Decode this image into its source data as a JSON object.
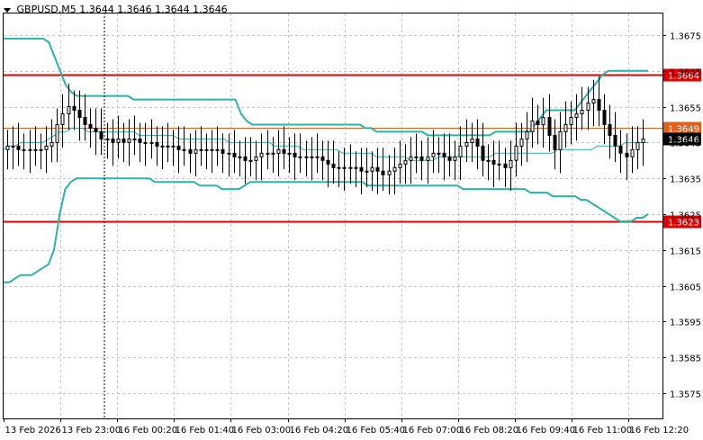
{
  "header": {
    "symbol": "GBPUSD,M5",
    "ohlc": "1.3644 1.3646 1.3644 1.3646",
    "menu_icon": "triangle-down-icon"
  },
  "colors": {
    "background": "#ffffff",
    "grid": "#c8c8c8",
    "candle": "#000000",
    "bands": "#2ab5a7",
    "level": "#e00000",
    "current_line": "#e06020",
    "price_tag": "#000000"
  },
  "chart_data": {
    "type": "candlestick",
    "symbol": "GBPUSD",
    "timeframe": "M5",
    "ylim": [
      1.3568,
      1.3681
    ],
    "y_ticks": [
      "1.3675",
      "1.3665",
      "1.3655",
      "1.3645",
      "1.3635",
      "1.3625",
      "1.3615",
      "1.3605",
      "1.3595",
      "1.3585",
      "1.3575"
    ],
    "x_ticks": [
      "13 Feb 2026",
      "13 Feb 23:00",
      "16 Feb 00:20",
      "16 Feb 01:40",
      "16 Feb 03:00",
      "16 Feb 04:20",
      "16 Feb 05:40",
      "16 Feb 07:00",
      "16 Feb 08:20",
      "16 Feb 09:40",
      "16 Feb 11:00",
      "16 Feb 12:20"
    ],
    "levels": [
      {
        "label": "1.3664",
        "value": 1.3664
      },
      {
        "label": "1.3623",
        "value": 1.3623
      }
    ],
    "marker_line": {
      "label": "1.3649",
      "value": 1.3649
    },
    "current_price": {
      "label": "1.3646",
      "value": 1.3646
    },
    "bands_upper": [
      1.3674,
      1.3674,
      1.3674,
      1.3674,
      1.3674,
      1.3674,
      1.3674,
      1.3674,
      1.3673,
      1.3669,
      1.3665,
      1.3661,
      1.3659,
      1.3658,
      1.3658,
      1.3658,
      1.3658,
      1.3658,
      1.3658,
      1.3658,
      1.3658,
      1.3658,
      1.3658,
      1.3657,
      1.3657,
      1.3657,
      1.3657,
      1.3657,
      1.3657,
      1.3657,
      1.3657,
      1.3657,
      1.3657,
      1.3657,
      1.3657,
      1.3657,
      1.3657,
      1.3657,
      1.3657,
      1.3657,
      1.3657,
      1.3657,
      1.3653,
      1.3651,
      1.365,
      1.365,
      1.365,
      1.365,
      1.365,
      1.365,
      1.365,
      1.365,
      1.365,
      1.365,
      1.365,
      1.365,
      1.365,
      1.365,
      1.365,
      1.365,
      1.365,
      1.365,
      1.365,
      1.365,
      1.3649,
      1.3649,
      1.3648,
      1.3648,
      1.3648,
      1.3648,
      1.3648,
      1.3648,
      1.3648,
      1.3648,
      1.3648,
      1.3647,
      1.3647,
      1.3647,
      1.3647,
      1.3647,
      1.3647,
      1.3647,
      1.3647,
      1.3647,
      1.3647,
      1.3647,
      1.3647,
      1.3648,
      1.3648,
      1.3648,
      1.3648,
      1.3648,
      1.3648,
      1.3648,
      1.365,
      1.3652,
      1.3654,
      1.3654,
      1.3654,
      1.3654,
      1.3654,
      1.3654,
      1.3656,
      1.3658,
      1.366,
      1.3662,
      1.3664,
      1.3665,
      1.3665,
      1.3665,
      1.3665,
      1.3665,
      1.3665,
      1.3665,
      1.3665
    ],
    "bands_middle": [
      1.3643,
      1.3644,
      1.3644,
      1.3645,
      1.3645,
      1.3645,
      1.3645,
      1.3645,
      1.3646,
      1.3647,
      1.3648,
      1.3648,
      1.3649,
      1.3649,
      1.3649,
      1.3648,
      1.3648,
      1.3648,
      1.3648,
      1.3648,
      1.3648,
      1.3648,
      1.3648,
      1.3648,
      1.3647,
      1.3647,
      1.3647,
      1.3647,
      1.3647,
      1.3647,
      1.3647,
      1.3646,
      1.3646,
      1.3646,
      1.3646,
      1.3646,
      1.3646,
      1.3646,
      1.3646,
      1.3646,
      1.3645,
      1.3645,
      1.3645,
      1.3645,
      1.3645,
      1.3645,
      1.3645,
      1.3645,
      1.3644,
      1.3644,
      1.3644,
      1.3644,
      1.3644,
      1.3643,
      1.3643,
      1.3643,
      1.3643,
      1.3643,
      1.3643,
      1.3643,
      1.3642,
      1.3642,
      1.3642,
      1.3642,
      1.3642,
      1.3642,
      1.3641,
      1.3641,
      1.3641,
      1.3641,
      1.3641,
      1.3641,
      1.364,
      1.364,
      1.364,
      1.364,
      1.364,
      1.3641,
      1.3641,
      1.3641,
      1.3641,
      1.3641,
      1.3641,
      1.3641,
      1.3641,
      1.3641,
      1.3641,
      1.3642,
      1.3642,
      1.3642,
      1.3642,
      1.3642,
      1.3642,
      1.3642,
      1.3642,
      1.3642,
      1.3642,
      1.3642,
      1.3643,
      1.3643,
      1.3643,
      1.3643,
      1.3643,
      1.3643,
      1.3643,
      1.3644,
      1.3644,
      1.3644,
      1.3644,
      1.3644,
      1.3645,
      1.3645,
      1.3645,
      1.3645,
      1.3645
    ],
    "bands_lower": [
      1.3606,
      1.3606,
      1.3607,
      1.3608,
      1.3608,
      1.3608,
      1.3609,
      1.361,
      1.3611,
      1.3615,
      1.3625,
      1.3632,
      1.3634,
      1.3635,
      1.3635,
      1.3635,
      1.3635,
      1.3635,
      1.3635,
      1.3635,
      1.3635,
      1.3635,
      1.3635,
      1.3635,
      1.3635,
      1.3635,
      1.3635,
      1.3634,
      1.3634,
      1.3634,
      1.3634,
      1.3634,
      1.3634,
      1.3634,
      1.3634,
      1.3633,
      1.3633,
      1.3633,
      1.3633,
      1.3632,
      1.3632,
      1.3632,
      1.3632,
      1.3633,
      1.3634,
      1.3634,
      1.3634,
      1.3634,
      1.3634,
      1.3634,
      1.3634,
      1.3634,
      1.3634,
      1.3634,
      1.3634,
      1.3634,
      1.3634,
      1.3634,
      1.3634,
      1.3634,
      1.3634,
      1.3634,
      1.3634,
      1.3634,
      1.3634,
      1.3633,
      1.3633,
      1.3633,
      1.3633,
      1.3633,
      1.3633,
      1.3633,
      1.3633,
      1.3633,
      1.3633,
      1.3633,
      1.3633,
      1.3633,
      1.3633,
      1.3633,
      1.3633,
      1.3633,
      1.3632,
      1.3632,
      1.3632,
      1.3632,
      1.3632,
      1.3632,
      1.3632,
      1.3632,
      1.3632,
      1.3632,
      1.3632,
      1.3632,
      1.3631,
      1.3631,
      1.3631,
      1.3631,
      1.363,
      1.363,
      1.363,
      1.363,
      1.363,
      1.3629,
      1.3629,
      1.3628,
      1.3627,
      1.3626,
      1.3625,
      1.3624,
      1.3623,
      1.3623,
      1.3623,
      1.3624,
      1.3624,
      1.3625
    ],
    "candles_close": [
      1.3644,
      1.3644,
      1.3643,
      1.3643,
      1.3643,
      1.3643,
      1.3643,
      1.3644,
      1.3645,
      1.365,
      1.3653,
      1.3655,
      1.3654,
      1.3652,
      1.365,
      1.3649,
      1.3648,
      1.3646,
      1.3646,
      1.3645,
      1.3646,
      1.3645,
      1.3646,
      1.3646,
      1.3645,
      1.3645,
      1.3645,
      1.3644,
      1.3644,
      1.3644,
      1.3644,
      1.3643,
      1.3643,
      1.3642,
      1.3643,
      1.3643,
      1.3643,
      1.3643,
      1.3643,
      1.3642,
      1.3642,
      1.3641,
      1.3641,
      1.364,
      1.364,
      1.3641,
      1.3642,
      1.3642,
      1.3642,
      1.3643,
      1.3642,
      1.3642,
      1.3641,
      1.3641,
      1.3641,
      1.3641,
      1.3641,
      1.364,
      1.3639,
      1.3638,
      1.3638,
      1.3638,
      1.3638,
      1.3638,
      1.3637,
      1.3637,
      1.3638,
      1.3637,
      1.3636,
      1.3637,
      1.3638,
      1.3639,
      1.364,
      1.3641,
      1.3641,
      1.364,
      1.3641,
      1.3642,
      1.3642,
      1.3641,
      1.364,
      1.3641,
      1.3644,
      1.3645,
      1.3646,
      1.3644,
      1.364,
      1.364,
      1.3639,
      1.3639,
      1.3638,
      1.364,
      1.3644,
      1.3646,
      1.3648,
      1.3651,
      1.365,
      1.3652,
      1.3647,
      1.3643,
      1.3648,
      1.365,
      1.3652,
      1.3653,
      1.3654,
      1.3656,
      1.3657,
      1.3654,
      1.365,
      1.3647,
      1.3644,
      1.3642,
      1.3641,
      1.3643,
      1.3645,
      1.3646
    ]
  }
}
